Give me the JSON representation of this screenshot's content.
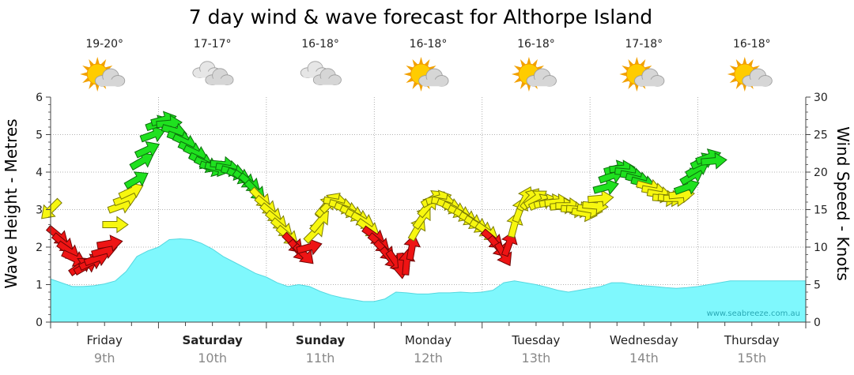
{
  "chart_data": {
    "type": "area",
    "title": "7 day wind & wave forecast for Althorpe Island",
    "ylabel_left": "Wave Height - Metres",
    "ylabel_right": "Wind Speed - Knots",
    "ylim_left": [
      0,
      6
    ],
    "ylim_right": [
      0,
      30
    ],
    "yticks_left": [
      "0",
      "1",
      "2",
      "3",
      "4",
      "5",
      "6"
    ],
    "yticks_right": [
      "0",
      "5",
      "10",
      "15",
      "20",
      "25",
      "30"
    ],
    "grid": true,
    "watermark": "www.seabreeze.com.au",
    "days": [
      {
        "day": "Friday",
        "date": "9th",
        "bold": false,
        "temp": "19-20°",
        "weather_icon": "partly-cloudy-icon"
      },
      {
        "day": "Saturday",
        "date": "10th",
        "bold": true,
        "temp": "17-17°",
        "weather_icon": "cloudy-icon"
      },
      {
        "day": "Sunday",
        "date": "11th",
        "bold": true,
        "temp": "16-18°",
        "weather_icon": "cloudy-icon"
      },
      {
        "day": "Monday",
        "date": "12th",
        "bold": false,
        "temp": "16-18°",
        "weather_icon": "partly-cloudy-icon"
      },
      {
        "day": "Tuesday",
        "date": "13th",
        "bold": false,
        "temp": "16-18°",
        "weather_icon": "partly-cloudy-icon"
      },
      {
        "day": "Wednesday",
        "date": "14th",
        "bold": false,
        "temp": "17-18°",
        "weather_icon": "partly-cloudy-icon"
      },
      {
        "day": "Thursday",
        "date": "15th",
        "bold": false,
        "temp": "16-18°",
        "weather_icon": "partly-cloudy-icon"
      }
    ],
    "series": [
      {
        "name": "Wave Height - Metres",
        "color": "#7ff8fd",
        "stroke": "#55d8e0",
        "x": [
          0,
          0.1,
          0.2,
          0.3,
          0.4,
          0.5,
          0.6,
          0.7,
          0.8,
          0.9,
          1.0,
          1.1,
          1.2,
          1.3,
          1.4,
          1.5,
          1.6,
          1.7,
          1.8,
          1.9,
          2.0,
          2.1,
          2.2,
          2.3,
          2.4,
          2.5,
          2.6,
          2.7,
          2.8,
          2.9,
          3.0,
          3.1,
          3.2,
          3.3,
          3.4,
          3.5,
          3.6,
          3.7,
          3.8,
          3.9,
          4.0,
          4.1,
          4.2,
          4.3,
          4.4,
          4.5,
          4.6,
          4.7,
          4.8,
          4.9,
          5.0,
          5.1,
          5.2,
          5.3,
          5.4,
          5.5,
          5.6,
          5.7,
          5.8,
          5.9,
          6.0,
          6.1,
          6.2,
          6.3,
          6.4,
          6.5,
          6.6,
          6.7,
          6.8,
          6.9,
          7.0
        ],
        "values": [
          1.15,
          1.05,
          0.95,
          0.95,
          0.97,
          1.02,
          1.1,
          1.35,
          1.75,
          1.9,
          2.0,
          2.2,
          2.22,
          2.2,
          2.1,
          1.95,
          1.75,
          1.6,
          1.45,
          1.3,
          1.2,
          1.05,
          0.95,
          1.0,
          0.95,
          0.82,
          0.72,
          0.65,
          0.6,
          0.55,
          0.55,
          0.62,
          0.8,
          0.78,
          0.75,
          0.75,
          0.78,
          0.78,
          0.8,
          0.78,
          0.8,
          0.85,
          1.05,
          1.1,
          1.05,
          1.0,
          0.93,
          0.85,
          0.8,
          0.85,
          0.9,
          0.95,
          1.05,
          1.05,
          1.0,
          0.97,
          0.95,
          0.92,
          0.9,
          0.92,
          0.95,
          1.0,
          1.05,
          1.1,
          1.1,
          1.1,
          1.1,
          1.1,
          1.1,
          1.1,
          1.1
        ]
      },
      {
        "name": "Wind Speed - Knots",
        "points": [
          {
            "t": 0.0,
            "kn": 15,
            "dir": 225,
            "color": "yellow"
          },
          {
            "t": 0.07,
            "kn": 11.5,
            "dir": 130,
            "color": "red"
          },
          {
            "t": 0.12,
            "kn": 10.5,
            "dir": 130,
            "color": "red"
          },
          {
            "t": 0.17,
            "kn": 9.5,
            "dir": 125,
            "color": "red"
          },
          {
            "t": 0.22,
            "kn": 8.5,
            "dir": 115,
            "color": "red"
          },
          {
            "t": 0.28,
            "kn": 7.5,
            "dir": 55,
            "color": "red"
          },
          {
            "t": 0.33,
            "kn": 7.5,
            "dir": 60,
            "color": "red"
          },
          {
            "t": 0.38,
            "kn": 8,
            "dir": 65,
            "color": "red"
          },
          {
            "t": 0.43,
            "kn": 8.5,
            "dir": 70,
            "color": "red"
          },
          {
            "t": 0.5,
            "kn": 9.5,
            "dir": 75,
            "color": "red"
          },
          {
            "t": 0.55,
            "kn": 10.5,
            "dir": 80,
            "color": "red"
          },
          {
            "t": 0.6,
            "kn": 13,
            "dir": 90,
            "color": "yellow"
          },
          {
            "t": 0.65,
            "kn": 15.5,
            "dir": 70,
            "color": "yellow"
          },
          {
            "t": 0.7,
            "kn": 16.5,
            "dir": 70,
            "color": "yellow"
          },
          {
            "t": 0.75,
            "kn": 17.5,
            "dir": 65,
            "color": "yellow"
          },
          {
            "t": 0.8,
            "kn": 19,
            "dir": 60,
            "color": "green"
          },
          {
            "t": 0.85,
            "kn": 21.5,
            "dir": 60,
            "color": "green"
          },
          {
            "t": 0.9,
            "kn": 23,
            "dir": 65,
            "color": "green"
          },
          {
            "t": 0.95,
            "kn": 25,
            "dir": 70,
            "color": "green"
          },
          {
            "t": 1.0,
            "kn": 26.5,
            "dir": 70,
            "color": "green"
          },
          {
            "t": 1.05,
            "kn": 27,
            "dir": 75,
            "color": "green"
          },
          {
            "t": 1.1,
            "kn": 26.5,
            "dir": 85,
            "color": "green"
          },
          {
            "t": 1.15,
            "kn": 25.5,
            "dir": 105,
            "color": "green"
          },
          {
            "t": 1.2,
            "kn": 24.5,
            "dir": 110,
            "color": "green"
          },
          {
            "t": 1.25,
            "kn": 24,
            "dir": 115,
            "color": "green"
          },
          {
            "t": 1.3,
            "kn": 23,
            "dir": 115,
            "color": "green"
          },
          {
            "t": 1.35,
            "kn": 22.5,
            "dir": 115,
            "color": "green"
          },
          {
            "t": 1.4,
            "kn": 21.5,
            "dir": 115,
            "color": "green"
          },
          {
            "t": 1.45,
            "kn": 21,
            "dir": 115,
            "color": "green"
          },
          {
            "t": 1.5,
            "kn": 20.5,
            "dir": 110,
            "color": "green"
          },
          {
            "t": 1.55,
            "kn": 20.5,
            "dir": 105,
            "color": "green"
          },
          {
            "t": 1.6,
            "kn": 21,
            "dir": 95,
            "color": "green"
          },
          {
            "t": 1.65,
            "kn": 20.5,
            "dir": 100,
            "color": "green"
          },
          {
            "t": 1.7,
            "kn": 20,
            "dir": 105,
            "color": "green"
          },
          {
            "t": 1.75,
            "kn": 19.5,
            "dir": 115,
            "color": "green"
          },
          {
            "t": 1.8,
            "kn": 19,
            "dir": 125,
            "color": "green"
          },
          {
            "t": 1.85,
            "kn": 18.5,
            "dir": 130,
            "color": "green"
          },
          {
            "t": 1.9,
            "kn": 17.5,
            "dir": 135,
            "color": "green"
          },
          {
            "t": 1.95,
            "kn": 16.5,
            "dir": 135,
            "color": "yellow"
          },
          {
            "t": 2.0,
            "kn": 15.5,
            "dir": 130,
            "color": "yellow"
          },
          {
            "t": 2.05,
            "kn": 14.5,
            "dir": 130,
            "color": "yellow"
          },
          {
            "t": 2.1,
            "kn": 13.5,
            "dir": 130,
            "color": "yellow"
          },
          {
            "t": 2.15,
            "kn": 12.5,
            "dir": 130,
            "color": "yellow"
          },
          {
            "t": 2.2,
            "kn": 11.5,
            "dir": 130,
            "color": "yellow"
          },
          {
            "t": 2.25,
            "kn": 10.5,
            "dir": 135,
            "color": "red"
          },
          {
            "t": 2.3,
            "kn": 9.5,
            "dir": 140,
            "color": "red"
          },
          {
            "t": 2.35,
            "kn": 9,
            "dir": 135,
            "color": "red"
          },
          {
            "t": 2.4,
            "kn": 10,
            "dir": 75,
            "color": "red"
          },
          {
            "t": 2.45,
            "kn": 12,
            "dir": 45,
            "color": "yellow"
          },
          {
            "t": 2.5,
            "kn": 13.5,
            "dir": 40,
            "color": "yellow"
          },
          {
            "t": 2.55,
            "kn": 15.5,
            "dir": 40,
            "color": "yellow"
          },
          {
            "t": 2.6,
            "kn": 16,
            "dir": 45,
            "color": "yellow"
          },
          {
            "t": 2.65,
            "kn": 16,
            "dir": 100,
            "color": "yellow"
          },
          {
            "t": 2.7,
            "kn": 15.5,
            "dir": 105,
            "color": "yellow"
          },
          {
            "t": 2.75,
            "kn": 15,
            "dir": 110,
            "color": "yellow"
          },
          {
            "t": 2.8,
            "kn": 14.5,
            "dir": 115,
            "color": "yellow"
          },
          {
            "t": 2.85,
            "kn": 14,
            "dir": 115,
            "color": "yellow"
          },
          {
            "t": 2.9,
            "kn": 13.5,
            "dir": 120,
            "color": "yellow"
          },
          {
            "t": 2.95,
            "kn": 12.5,
            "dir": 125,
            "color": "yellow"
          },
          {
            "t": 3.0,
            "kn": 11.5,
            "dir": 125,
            "color": "red"
          },
          {
            "t": 3.05,
            "kn": 10.5,
            "dir": 130,
            "color": "red"
          },
          {
            "t": 3.1,
            "kn": 9.5,
            "dir": 135,
            "color": "red"
          },
          {
            "t": 3.15,
            "kn": 8.5,
            "dir": 140,
            "color": "red"
          },
          {
            "t": 3.2,
            "kn": 8,
            "dir": 145,
            "color": "red"
          },
          {
            "t": 3.25,
            "kn": 7.5,
            "dir": 175,
            "color": "red"
          },
          {
            "t": 3.3,
            "kn": 8,
            "dir": 5,
            "color": "red"
          },
          {
            "t": 3.35,
            "kn": 10,
            "dir": 10,
            "color": "red"
          },
          {
            "t": 3.4,
            "kn": 12.5,
            "dir": 30,
            "color": "yellow"
          },
          {
            "t": 3.45,
            "kn": 14,
            "dir": 35,
            "color": "yellow"
          },
          {
            "t": 3.5,
            "kn": 15.5,
            "dir": 40,
            "color": "yellow"
          },
          {
            "t": 3.55,
            "kn": 16.5,
            "dir": 60,
            "color": "yellow"
          },
          {
            "t": 3.6,
            "kn": 16.5,
            "dir": 75,
            "color": "yellow"
          },
          {
            "t": 3.65,
            "kn": 16,
            "dir": 100,
            "color": "yellow"
          },
          {
            "t": 3.7,
            "kn": 15.5,
            "dir": 110,
            "color": "yellow"
          },
          {
            "t": 3.75,
            "kn": 15,
            "dir": 115,
            "color": "yellow"
          },
          {
            "t": 3.8,
            "kn": 14.5,
            "dir": 115,
            "color": "yellow"
          },
          {
            "t": 3.85,
            "kn": 14,
            "dir": 120,
            "color": "yellow"
          },
          {
            "t": 3.9,
            "kn": 13.5,
            "dir": 120,
            "color": "yellow"
          },
          {
            "t": 3.95,
            "kn": 13,
            "dir": 120,
            "color": "yellow"
          },
          {
            "t": 4.0,
            "kn": 12.5,
            "dir": 120,
            "color": "yellow"
          },
          {
            "t": 4.05,
            "kn": 12,
            "dir": 125,
            "color": "yellow"
          },
          {
            "t": 4.1,
            "kn": 11,
            "dir": 130,
            "color": "red"
          },
          {
            "t": 4.15,
            "kn": 10,
            "dir": 140,
            "color": "red"
          },
          {
            "t": 4.2,
            "kn": 9,
            "dir": 150,
            "color": "red"
          },
          {
            "t": 4.25,
            "kn": 10.5,
            "dir": 20,
            "color": "red"
          },
          {
            "t": 4.3,
            "kn": 13,
            "dir": 15,
            "color": "yellow"
          },
          {
            "t": 4.35,
            "kn": 15,
            "dir": 20,
            "color": "yellow"
          },
          {
            "t": 4.4,
            "kn": 16.5,
            "dir": 25,
            "color": "yellow"
          },
          {
            "t": 4.45,
            "kn": 16.5,
            "dir": 40,
            "color": "yellow"
          },
          {
            "t": 4.5,
            "kn": 16.5,
            "dir": 55,
            "color": "yellow"
          },
          {
            "t": 4.55,
            "kn": 16,
            "dir": 65,
            "color": "yellow"
          },
          {
            "t": 4.6,
            "kn": 16,
            "dir": 75,
            "color": "yellow"
          },
          {
            "t": 4.65,
            "kn": 16,
            "dir": 80,
            "color": "yellow"
          },
          {
            "t": 4.7,
            "kn": 16,
            "dir": 85,
            "color": "yellow"
          },
          {
            "t": 4.75,
            "kn": 15.5,
            "dir": 85,
            "color": "yellow"
          },
          {
            "t": 4.8,
            "kn": 15.5,
            "dir": 90,
            "color": "yellow"
          },
          {
            "t": 4.85,
            "kn": 15,
            "dir": 95,
            "color": "yellow"
          },
          {
            "t": 4.9,
            "kn": 15,
            "dir": 95,
            "color": "yellow"
          },
          {
            "t": 4.95,
            "kn": 14.5,
            "dir": 100,
            "color": "yellow"
          },
          {
            "t": 5.0,
            "kn": 15,
            "dir": 100,
            "color": "yellow"
          },
          {
            "t": 5.05,
            "kn": 15.5,
            "dir": 95,
            "color": "yellow"
          },
          {
            "t": 5.1,
            "kn": 16.5,
            "dir": 85,
            "color": "yellow"
          },
          {
            "t": 5.15,
            "kn": 18,
            "dir": 75,
            "color": "green"
          },
          {
            "t": 5.2,
            "kn": 19.5,
            "dir": 70,
            "color": "green"
          },
          {
            "t": 5.25,
            "kn": 20.5,
            "dir": 75,
            "color": "green"
          },
          {
            "t": 5.3,
            "kn": 20.5,
            "dir": 85,
            "color": "green"
          },
          {
            "t": 5.35,
            "kn": 20,
            "dir": 95,
            "color": "green"
          },
          {
            "t": 5.4,
            "kn": 19.5,
            "dir": 100,
            "color": "green"
          },
          {
            "t": 5.45,
            "kn": 19,
            "dir": 105,
            "color": "green"
          },
          {
            "t": 5.5,
            "kn": 18.5,
            "dir": 105,
            "color": "green"
          },
          {
            "t": 5.55,
            "kn": 18,
            "dir": 105,
            "color": "yellow"
          },
          {
            "t": 5.6,
            "kn": 17.5,
            "dir": 100,
            "color": "yellow"
          },
          {
            "t": 5.65,
            "kn": 17,
            "dir": 100,
            "color": "yellow"
          },
          {
            "t": 5.7,
            "kn": 16.5,
            "dir": 95,
            "color": "yellow"
          },
          {
            "t": 5.75,
            "kn": 16.5,
            "dir": 95,
            "color": "yellow"
          },
          {
            "t": 5.8,
            "kn": 16.5,
            "dir": 90,
            "color": "yellow"
          },
          {
            "t": 5.85,
            "kn": 17,
            "dir": 85,
            "color": "yellow"
          },
          {
            "t": 5.9,
            "kn": 18,
            "dir": 70,
            "color": "green"
          },
          {
            "t": 5.95,
            "kn": 19.5,
            "dir": 60,
            "color": "green"
          },
          {
            "t": 6.0,
            "kn": 20.5,
            "dir": 60,
            "color": "green"
          },
          {
            "t": 6.05,
            "kn": 21.5,
            "dir": 65,
            "color": "green"
          },
          {
            "t": 6.1,
            "kn": 22,
            "dir": 70,
            "color": "green"
          },
          {
            "t": 6.15,
            "kn": 21.5,
            "dir": 85,
            "color": "green"
          }
        ]
      }
    ]
  }
}
